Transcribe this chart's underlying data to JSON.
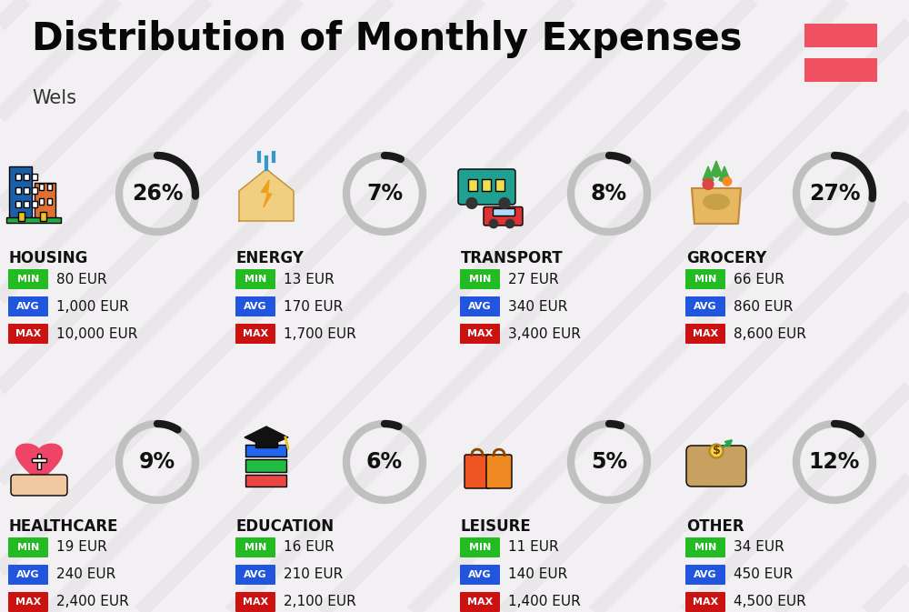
{
  "title": "Distribution of Monthly Expenses",
  "subtitle": "Wels",
  "background_color": "#f2f0f2",
  "categories": [
    {
      "name": "HOUSING",
      "percent": 26,
      "min_val": "80 EUR",
      "avg_val": "1,000 EUR",
      "max_val": "10,000 EUR",
      "row": 0,
      "col": 0
    },
    {
      "name": "ENERGY",
      "percent": 7,
      "min_val": "13 EUR",
      "avg_val": "170 EUR",
      "max_val": "1,700 EUR",
      "row": 0,
      "col": 1
    },
    {
      "name": "TRANSPORT",
      "percent": 8,
      "min_val": "27 EUR",
      "avg_val": "340 EUR",
      "max_val": "3,400 EUR",
      "row": 0,
      "col": 2
    },
    {
      "name": "GROCERY",
      "percent": 27,
      "min_val": "66 EUR",
      "avg_val": "860 EUR",
      "max_val": "8,600 EUR",
      "row": 0,
      "col": 3
    },
    {
      "name": "HEALTHCARE",
      "percent": 9,
      "min_val": "19 EUR",
      "avg_val": "240 EUR",
      "max_val": "2,400 EUR",
      "row": 1,
      "col": 0
    },
    {
      "name": "EDUCATION",
      "percent": 6,
      "min_val": "16 EUR",
      "avg_val": "210 EUR",
      "max_val": "2,100 EUR",
      "row": 1,
      "col": 1
    },
    {
      "name": "LEISURE",
      "percent": 5,
      "min_val": "11 EUR",
      "avg_val": "140 EUR",
      "max_val": "1,400 EUR",
      "row": 1,
      "col": 2
    },
    {
      "name": "OTHER",
      "percent": 12,
      "min_val": "34 EUR",
      "avg_val": "450 EUR",
      "max_val": "4,500 EUR",
      "row": 1,
      "col": 3
    }
  ],
  "min_color": "#22bb22",
  "avg_color": "#2255dd",
  "max_color": "#cc1111",
  "flag_color": "#f05060",
  "arc_dark": "#1a1a1a",
  "arc_light": "#c0c0c0",
  "title_fontsize": 30,
  "subtitle_fontsize": 15,
  "category_fontsize": 12,
  "badge_fontsize": 8,
  "value_fontsize": 11,
  "percent_fontsize": 17,
  "stripe_color": "#d8d4d8",
  "stripe_alpha": 0.3
}
